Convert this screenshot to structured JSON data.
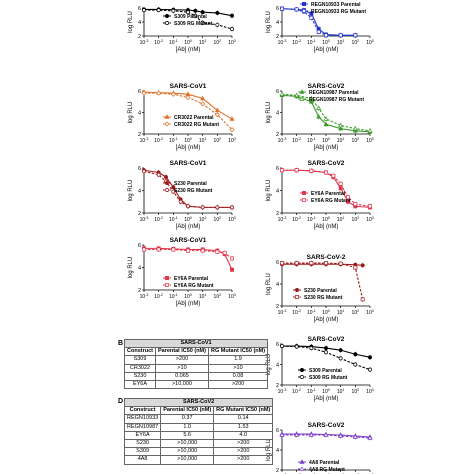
{
  "panel_letters": {
    "b": "B",
    "d": "D"
  },
  "chart_data": [
    {
      "id": "c1",
      "type": "line",
      "title": "",
      "xlabel": "[Ab] (nM)",
      "ylabel": "log RLU",
      "xscale": "log",
      "xlim": [
        -3,
        3
      ],
      "ylim": [
        2,
        6
      ],
      "yticks": [
        2,
        4,
        6
      ],
      "x": [
        -3,
        -2,
        -1,
        0,
        0.5,
        1,
        2,
        3
      ],
      "series": [
        {
          "name": "S309 Parental",
          "color": "#000000",
          "style": "solid",
          "marker": "filled-circle",
          "values": [
            5.8,
            5.8,
            5.75,
            5.7,
            5.6,
            5.4,
            5.3,
            4.9
          ]
        },
        {
          "name": "S309 RG Mutant",
          "color": "#000000",
          "style": "dashed",
          "marker": "open-circle",
          "values": [
            5.7,
            5.7,
            5.6,
            5.4,
            4.9,
            3.9,
            3.6,
            3.0
          ]
        }
      ]
    },
    {
      "id": "c2",
      "type": "line",
      "title": "",
      "xlabel": "[Ab] (nM)",
      "ylabel": "log RLU",
      "xscale": "log",
      "xlim": [
        -3,
        3
      ],
      "ylim": [
        2,
        6
      ],
      "yticks": [
        2,
        4,
        6
      ],
      "x": [
        -3,
        -2,
        -1.5,
        -1,
        -0.5,
        0,
        1,
        2
      ],
      "series": [
        {
          "name": "REGN10933 Parental",
          "color": "#1f33cc",
          "style": "solid",
          "marker": "filled-square",
          "values": [
            5.9,
            5.8,
            5.7,
            5.2,
            3.0,
            2.2,
            2.1,
            2.1
          ]
        },
        {
          "name": "REGN10933 RG Mutant",
          "color": "#1f33cc",
          "style": "dashed",
          "marker": "open-square",
          "values": [
            5.9,
            5.8,
            5.5,
            4.6,
            2.6,
            2.1,
            2.1,
            2.1
          ]
        }
      ]
    },
    {
      "id": "c3",
      "type": "line",
      "title": "SARS-CoV1",
      "xlabel": "[Ab] (nM)",
      "ylabel": "log RLU",
      "xscale": "log",
      "xlim": [
        -3,
        3
      ],
      "ylim": [
        2,
        6
      ],
      "yticks": [
        2,
        4,
        6
      ],
      "x": [
        -3,
        -2,
        -1,
        0,
        1,
        2,
        3
      ],
      "series": [
        {
          "name": "CR3022 Parental",
          "color": "#e0702a",
          "style": "solid",
          "marker": "filled-triangle",
          "values": [
            5.9,
            5.85,
            5.8,
            5.7,
            5.3,
            4.2,
            3.4
          ]
        },
        {
          "name": "CR3022 RG Mutant",
          "color": "#e0702a",
          "style": "dashed",
          "marker": "open-diamond",
          "values": [
            5.8,
            5.8,
            5.7,
            5.4,
            4.8,
            3.8,
            2.4
          ]
        }
      ]
    },
    {
      "id": "c4",
      "type": "line",
      "title": "SARS-CoV2",
      "xlabel": "[Ab] (nM)",
      "ylabel": "log RLU",
      "xscale": "log",
      "xlim": [
        -3,
        3
      ],
      "ylim": [
        2,
        6
      ],
      "yticks": [
        2,
        4,
        6
      ],
      "x": [
        -3,
        -2,
        -1,
        -0.5,
        0,
        1,
        2,
        3
      ],
      "series": [
        {
          "name": "REGN10987 Parental",
          "color": "#3c9a2a",
          "style": "solid",
          "marker": "filled-triangle",
          "values": [
            5.6,
            5.5,
            5.0,
            3.6,
            2.9,
            2.5,
            2.3,
            2.2
          ]
        },
        {
          "name": "REGN10987 RG Mutant",
          "color": "#3c9a2a",
          "style": "dashed",
          "marker": "open-triangle",
          "values": [
            5.7,
            5.6,
            5.3,
            4.4,
            3.4,
            2.8,
            2.5,
            2.3
          ]
        }
      ]
    },
    {
      "id": "c5",
      "type": "line",
      "title": "SARS-CoV1",
      "xlabel": "[Ab] (nM)",
      "ylabel": "log RLU",
      "xscale": "log",
      "xlim": [
        -3,
        3
      ],
      "ylim": [
        2,
        6
      ],
      "yticks": [
        2,
        4,
        6
      ],
      "x": [
        -3,
        -2,
        -1.5,
        -1,
        -0.5,
        0,
        1,
        2,
        3
      ],
      "series": [
        {
          "name": "S230 Parental",
          "color": "#9e1a1a",
          "style": "solid",
          "marker": "filled-circle",
          "values": [
            5.8,
            5.6,
            5.2,
            4.3,
            3.2,
            2.6,
            2.5,
            2.5,
            2.5
          ]
        },
        {
          "name": "S230 RG Mutant",
          "color": "#9e1a1a",
          "style": "dashed",
          "marker": "open-circle",
          "values": [
            5.7,
            5.4,
            4.8,
            3.9,
            3.0,
            2.6,
            2.5,
            2.5,
            2.5
          ]
        }
      ]
    },
    {
      "id": "c6",
      "type": "line",
      "title": "SARS-CoV2",
      "xlabel": "[Ab] (nM)",
      "ylabel": "log RLU",
      "xscale": "log",
      "xlim": [
        -3,
        3
      ],
      "ylim": [
        2,
        6
      ],
      "yticks": [
        2,
        4,
        6
      ],
      "x": [
        -3,
        -2,
        -1,
        0,
        0.5,
        1,
        1.5,
        2,
        3
      ],
      "series": [
        {
          "name": "EY6A Parental",
          "color": "#e0344a",
          "style": "solid",
          "marker": "filled-square",
          "values": [
            5.8,
            5.8,
            5.75,
            5.6,
            5.2,
            4.2,
            3.0,
            2.6,
            2.5
          ]
        },
        {
          "name": "EY6A RG Mutant",
          "color": "#e0344a",
          "style": "dashed",
          "marker": "open-square",
          "values": [
            5.8,
            5.8,
            5.75,
            5.6,
            5.3,
            4.6,
            3.4,
            2.8,
            2.6
          ]
        }
      ]
    },
    {
      "id": "c7",
      "type": "line",
      "title": "SARS-CoV1",
      "xlabel": "[Ab] (nM)",
      "ylabel": "log RLU",
      "xscale": "log",
      "xlim": [
        -3,
        3
      ],
      "ylim": [
        2,
        6
      ],
      "yticks": [
        2,
        4,
        6
      ],
      "x": [
        -3,
        -2,
        -1,
        0,
        1,
        2,
        2.5,
        3
      ],
      "series": [
        {
          "name": "EY6A Parental",
          "color": "#e0344a",
          "style": "solid",
          "marker": "filled-square",
          "values": [
            5.7,
            5.7,
            5.65,
            5.6,
            5.6,
            5.5,
            5.2,
            3.8
          ]
        },
        {
          "name": "EY6A RG Mutant",
          "color": "#e0344a",
          "style": "dashed",
          "marker": "open-square",
          "values": [
            5.6,
            5.6,
            5.6,
            5.5,
            5.5,
            5.4,
            5.3,
            4.8
          ]
        }
      ]
    },
    {
      "id": "c8",
      "type": "line",
      "title": "SARS-CoV-2",
      "xlabel": "[Ab] (nM)",
      "ylabel": "log RLU",
      "xscale": "log",
      "xlim": [
        -3,
        3
      ],
      "ylim": [
        2,
        6
      ],
      "yticks": [
        2,
        4,
        6
      ],
      "x": [
        -3,
        -2,
        -1,
        0,
        1,
        2,
        2.5
      ],
      "series": [
        {
          "name": "S230 Parental",
          "color": "#9e1a1a",
          "style": "solid",
          "marker": "filled-circle",
          "values": [
            5.8,
            5.8,
            5.8,
            5.8,
            5.8,
            5.75,
            5.7
          ]
        },
        {
          "name": "S230 RG Mutant",
          "color": "#9e1a1a",
          "style": "dashed",
          "marker": "open-square",
          "values": [
            5.9,
            5.9,
            5.9,
            5.9,
            5.85,
            5.5,
            2.6
          ]
        }
      ]
    },
    {
      "id": "c9",
      "type": "line",
      "title": "SARS-CoV2",
      "xlabel": "[Ab] (nM)",
      "ylabel": "log RLU",
      "xscale": "log",
      "xlim": [
        -3,
        3
      ],
      "ylim": [
        2,
        6
      ],
      "yticks": [
        2,
        4,
        6
      ],
      "x": [
        -3,
        -2,
        -1,
        0,
        1,
        2,
        3
      ],
      "series": [
        {
          "name": "S309 Parental",
          "color": "#000000",
          "style": "solid",
          "marker": "filled-circle",
          "values": [
            5.8,
            5.8,
            5.75,
            5.6,
            5.4,
            5.0,
            4.7
          ]
        },
        {
          "name": "S309 RG Mutant",
          "color": "#000000",
          "style": "dashed",
          "marker": "open-circle",
          "values": [
            5.8,
            5.75,
            5.6,
            5.2,
            4.6,
            4.0,
            3.5
          ]
        }
      ]
    },
    {
      "id": "c10",
      "type": "line",
      "title": "SARS-CoV2",
      "xlabel": "",
      "ylabel": "log RLU",
      "xscale": "log",
      "xlim": [
        -3,
        3
      ],
      "ylim": [
        2,
        6
      ],
      "yticks": [
        2,
        4,
        6
      ],
      "x": [
        -3,
        -2,
        -1,
        0,
        1,
        2,
        3
      ],
      "series": [
        {
          "name": "4A8 Parental",
          "color": "#7a3ec8",
          "style": "solid",
          "marker": "filled-triangle",
          "values": [
            5.6,
            5.6,
            5.6,
            5.55,
            5.5,
            5.4,
            5.3
          ]
        },
        {
          "name": "4A8 RG Mutant",
          "color": "#7a3ec8",
          "style": "dashed",
          "marker": "open-triangle",
          "values": [
            5.5,
            5.5,
            5.5,
            5.5,
            5.4,
            5.3,
            5.2
          ]
        }
      ]
    },
    {
      "id": "table_b",
      "type": "table",
      "title": "SARS-CoV1",
      "columns": [
        "Construct",
        "Parental IC50 (nM)",
        "RG Mutant IC50 (nM)"
      ],
      "rows": [
        [
          "S309",
          ">200",
          "1.9"
        ],
        [
          "CR3022",
          ">10",
          ">10"
        ],
        [
          "S230",
          "0.065",
          "0.08"
        ],
        [
          "EY6A",
          ">10,000",
          ">200"
        ]
      ]
    },
    {
      "id": "table_d",
      "type": "table",
      "title": "SARS-CoV2",
      "columns": [
        "Construct",
        "Parental IC50 (nM)",
        "RG Mutant IC50 (nM)"
      ],
      "rows": [
        [
          "REGN10933",
          "0.37",
          "0.14"
        ],
        [
          "REGN10987",
          "1.0",
          "1.53"
        ],
        [
          "EY6A",
          "5.6",
          "4.0"
        ],
        [
          "S230",
          ">10,000",
          ">200"
        ],
        [
          "S309",
          ">10,000",
          ">200"
        ],
        [
          "4A8",
          ">10,000",
          ">200"
        ]
      ]
    }
  ]
}
